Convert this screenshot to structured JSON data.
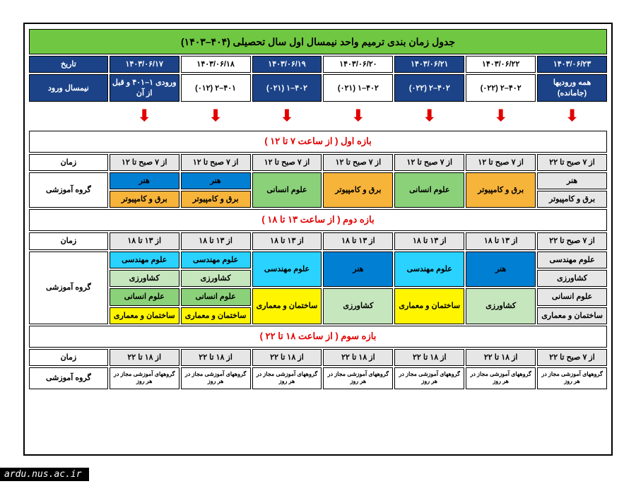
{
  "title": "جدول زمان بندی ترمیم واحد نیمسال اول سال تحصیلی (۴۰۴–۱۴۰۳)",
  "labels": {
    "date": "تاریخ",
    "entry": "نیمسال ورود",
    "time": "زمان",
    "group": "گروه آموزشی"
  },
  "dates": [
    "۱۴۰۳/۰۶/۱۷",
    "۱۴۰۳/۰۶/۱۸",
    "۱۴۰۳/۰۶/۱۹",
    "۱۴۰۳/۰۶/۲۰",
    "۱۴۰۳/۰۶/۲۱",
    "۱۴۰۳/۰۶/۲۲",
    "۱۴۰۳/۰۶/۲۳"
  ],
  "entries": [
    "ورودی ۱–۴۰۱ و قبل از آن",
    "۴۰۱–۲ (۰۱۲)",
    "۴۰۲–۱ (۰۲۱)",
    "۴۰۲–۱ (۰۲۱)",
    "۴۰۲–۲ (۰۲۲)",
    "۴۰۲–۲ (۰۲۲)",
    "همه ورودیها (جامانده)"
  ],
  "date_colors": [
    "blue",
    "white",
    "blue",
    "white",
    "blue",
    "white",
    "blue"
  ],
  "sections": {
    "s1": "بازه اول ( از ساعت ۷ تا ۱۲ )",
    "s2": "بازه دوم ( از ساعت ۱۳ تا ۱۸ )",
    "s3": "بازه سوم ( از ساعت ۱۸ تا ۲۲ )"
  },
  "time1": [
    "از ۷ صبح تا ۱۲",
    "از ۷ صبح تا ۱۲",
    "از ۷ صبح تا ۱۲",
    "از ۷ صبح تا ۱۲",
    "از ۷ صبح تا ۱۲",
    "از ۷ صبح تا ۱۲",
    "از ۷ صبح تا ۲۲"
  ],
  "g1a": {
    "c0": "هنر",
    "c1": "هنر",
    "c2": "علوم انسانی",
    "c3": "برق و کامپیوتر",
    "c4": "علوم انسانی",
    "c5": "برق و کامپیوتر",
    "c6a": "هنر",
    "c6b": "برق و کامپیوتر"
  },
  "g1b": {
    "c0": "برق و کامپیوتر",
    "c1": "برق و کامپیوتر"
  },
  "time2": [
    "از ۱۳ تا ۱۸",
    "از ۱۳ تا ۱۸",
    "از ۱۳ تا ۱۸",
    "از ۱۳ تا ۱۸",
    "از ۱۳ تا ۱۸",
    "از ۱۳ تا ۱۸",
    "از ۷ صبح تا ۲۲"
  ],
  "g2r1": {
    "c0": "علوم مهندسی",
    "c1": "علوم مهندسی",
    "c2": "علوم مهندسی",
    "c3": "هنر",
    "c4": "علوم مهندسی",
    "c5": "هنر",
    "c6": "علوم مهندسی"
  },
  "g2r2": {
    "c0": "کشاورزی",
    "c1": "کشاورزی",
    "c6": "کشاورزی"
  },
  "g2r3": {
    "c0": "علوم انسانی",
    "c1": "علوم انسانی",
    "c2": "ساختمان و معماری",
    "c3": "کشاورزی",
    "c4": "ساختمان و معماری",
    "c5": "کشاورزی",
    "c6": "علوم انسانی"
  },
  "g2r4": {
    "c0": "ساختمان و معماری",
    "c1": "ساختمان و معماری",
    "c6": "ساختمان و معماری"
  },
  "time3": [
    "از ۱۸ تا ۲۲",
    "از ۱۸ تا ۲۲",
    "از ۱۸ تا ۲۲",
    "از ۱۸ تا ۲۲",
    "از ۱۸ تا ۲۲",
    "از ۱۸ تا ۲۲",
    "از ۷ صبح تا ۲۲"
  ],
  "g3": "گروههای آموزشی مجاز در هر روز",
  "footer": "ardu.nus.ac.ir"
}
